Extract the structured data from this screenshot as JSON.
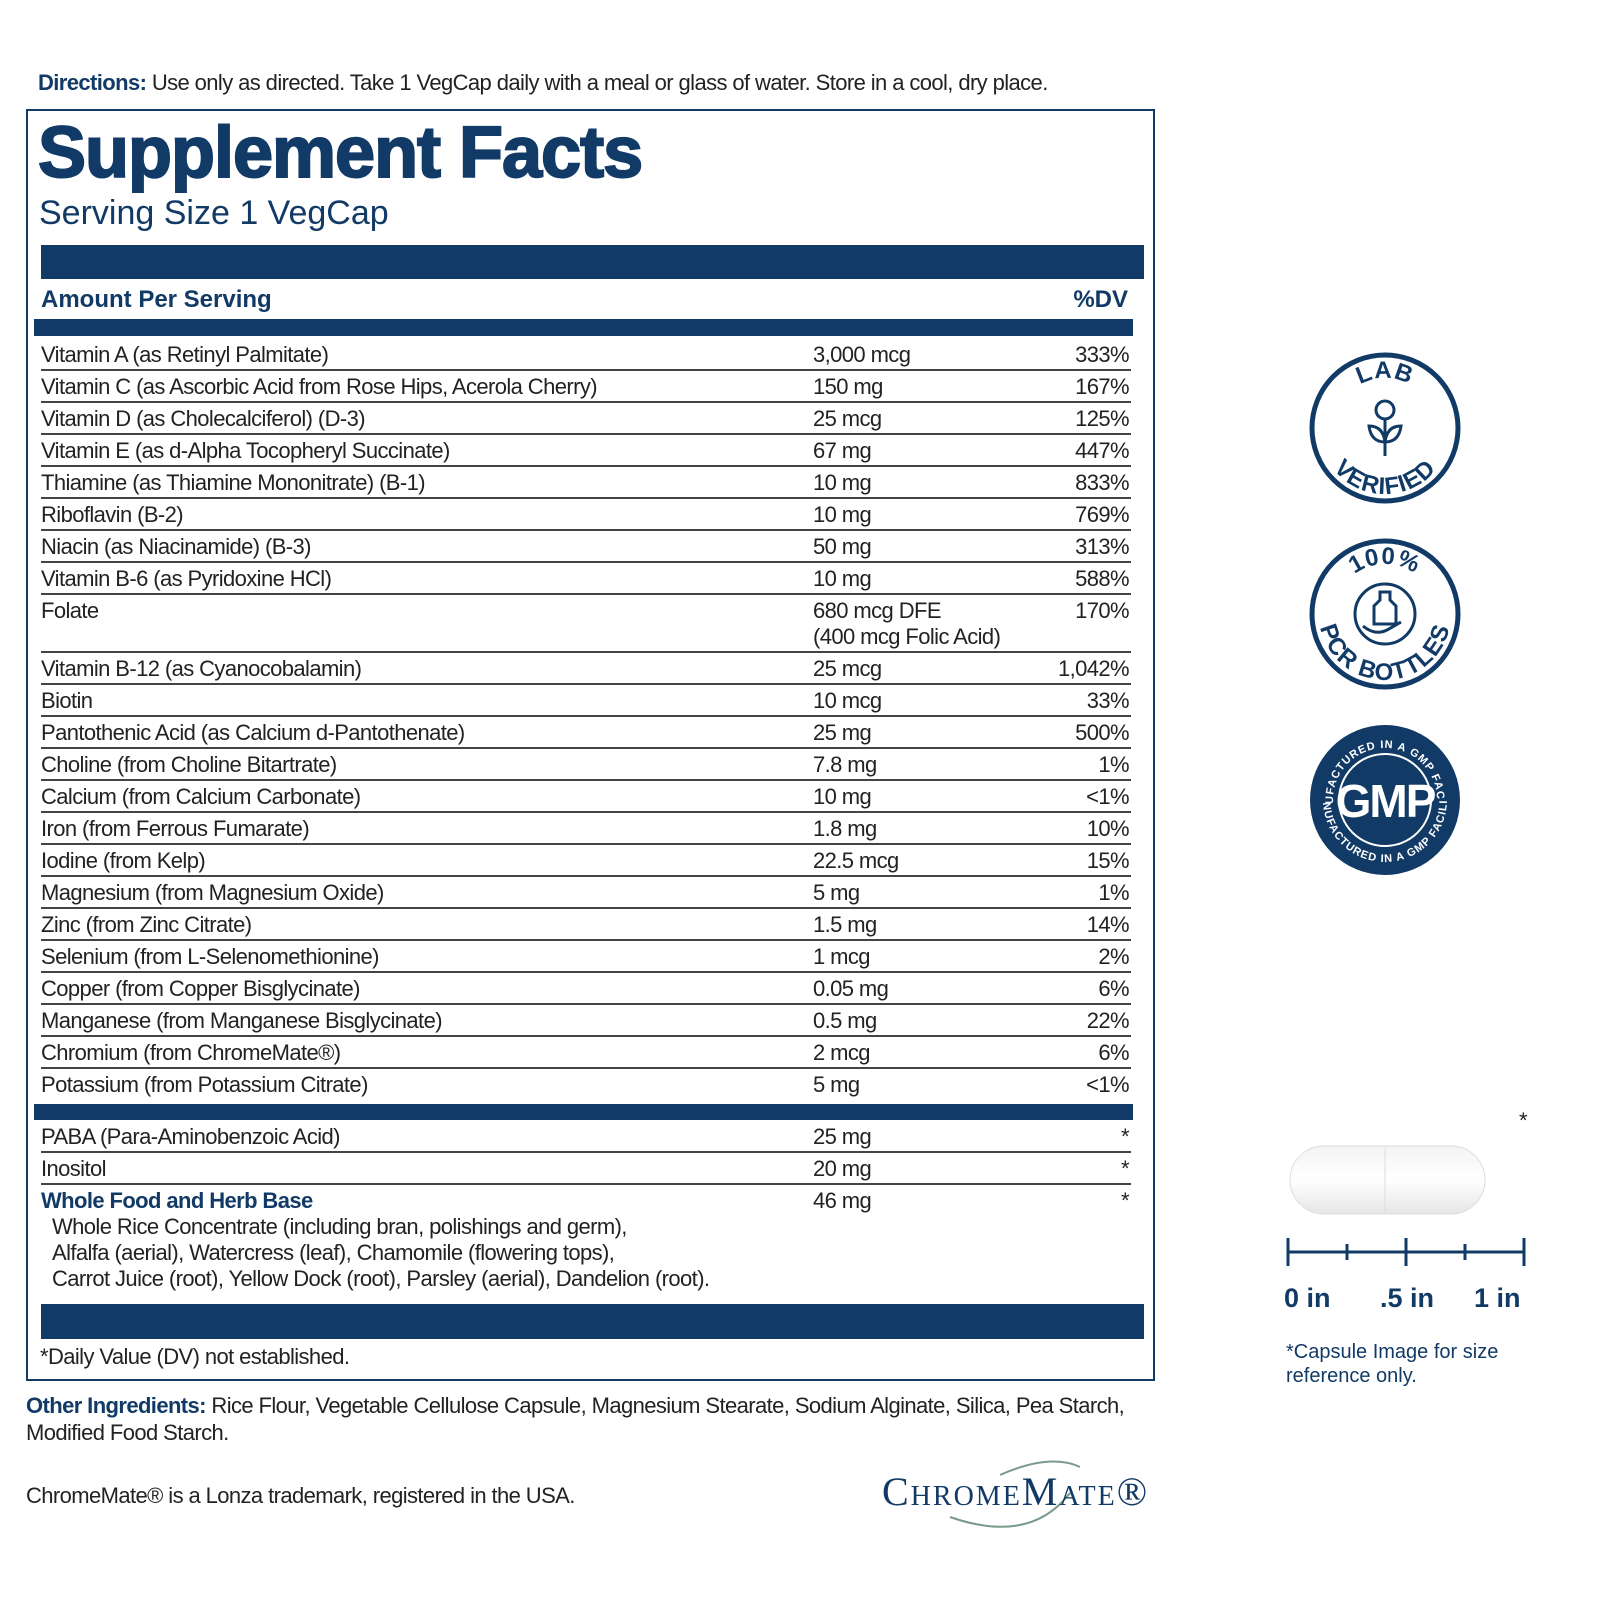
{
  "directions": {
    "label": "Directions:",
    "text": "Use only as directed. Take 1 VegCap daily with a meal or glass of water. Store in a cool, dry place."
  },
  "supplement_facts": {
    "title": "Supplement Facts",
    "serving_size": "Serving Size 1 VegCap",
    "header": {
      "amount": "Amount Per Serving",
      "dv": "%DV"
    },
    "rows": [
      {
        "name": "Vitamin A (as Retinyl Palmitate)",
        "amount": "3,000 mcg",
        "dv": "333%"
      },
      {
        "name": "Vitamin C (as Ascorbic Acid from Rose Hips, Acerola Cherry)",
        "amount": "150 mg",
        "dv": "167%"
      },
      {
        "name": "Vitamin D (as Cholecalciferol) (D-3)",
        "amount": "25 mcg",
        "dv": "125%"
      },
      {
        "name": "Vitamin E (as d-Alpha Tocopheryl Succinate)",
        "amount": "67 mg",
        "dv": "447%"
      },
      {
        "name": "Thiamine (as Thiamine Mononitrate) (B-1)",
        "amount": "10 mg",
        "dv": "833%"
      },
      {
        "name": "Riboflavin (B-2)",
        "amount": "10 mg",
        "dv": "769%"
      },
      {
        "name": "Niacin (as Niacinamide) (B-3)",
        "amount": "50 mg",
        "dv": "313%"
      },
      {
        "name": "Vitamin B-6 (as Pyridoxine HCl)",
        "amount": "10 mg",
        "dv": "588%"
      },
      {
        "name": "Folate",
        "amount": "680 mcg DFE",
        "amount_note": "(400 mcg Folic Acid)",
        "dv": "170%"
      },
      {
        "name": "Vitamin B-12 (as Cyanocobalamin)",
        "amount": "25 mcg",
        "dv": "1,042%"
      },
      {
        "name": "Biotin",
        "amount": "10 mcg",
        "dv": "33%"
      },
      {
        "name": "Pantothenic Acid (as Calcium d-Pantothenate)",
        "amount": "25 mg",
        "dv": "500%"
      },
      {
        "name": "Choline (from Choline Bitartrate)",
        "amount": "7.8 mg",
        "dv": "1%"
      },
      {
        "name": "Calcium (from Calcium Carbonate)",
        "amount": "10 mg",
        "dv": "<1%"
      },
      {
        "name": "Iron (from Ferrous Fumarate)",
        "amount": "1.8 mg",
        "dv": "10%"
      },
      {
        "name": "Iodine (from Kelp)",
        "amount": "22.5 mcg",
        "dv": "15%"
      },
      {
        "name": "Magnesium (from Magnesium Oxide)",
        "amount": "5 mg",
        "dv": "1%"
      },
      {
        "name": "Zinc (from Zinc Citrate)",
        "amount": "1.5 mg",
        "dv": "14%"
      },
      {
        "name": "Selenium (from L-Selenomethionine)",
        "amount": "1 mcg",
        "dv": "2%"
      },
      {
        "name": "Copper (from Copper Bisglycinate)",
        "amount": "0.05 mg",
        "dv": "6%"
      },
      {
        "name": "Manganese (from Manganese Bisglycinate)",
        "amount": "0.5 mg",
        "dv": "22%"
      },
      {
        "name": "Chromium (from ChromeMate®)",
        "amount": "2 mcg",
        "dv": "6%"
      },
      {
        "name": "Potassium (from Potassium Citrate)",
        "amount": "5 mg",
        "dv": "<1%"
      }
    ],
    "other_rows": [
      {
        "name": "PABA (Para-Aminobenzoic Acid)",
        "amount": "25 mg",
        "dv": "*"
      },
      {
        "name": "Inositol",
        "amount": "20 mg",
        "dv": "*"
      },
      {
        "name": "Whole Food and Herb Base",
        "amount": "46 mg",
        "dv": "*",
        "ingredients": [
          "Whole Rice Concentrate (including bran, polishings and germ),",
          "Alfalfa (aerial), Watercress (leaf), Chamomile (flowering tops),",
          "Carrot Juice (root), Yellow Dock (root), Parsley (aerial), Dandelion (root)."
        ]
      }
    ],
    "footnote": "*Daily Value (DV) not established."
  },
  "other_ingredients": {
    "label": "Other Ingredients:",
    "text": "Rice Flour, Vegetable Cellulose Capsule, Magnesium Stearate, Sodium Alginate, Silica, Pea Starch, Modified Food Starch."
  },
  "trademark_note": "ChromeMate® is a Lonza trademark, registered in the USA.",
  "logo": "ChromeMate®",
  "badges": [
    {
      "top": "LAB",
      "bottom": "VERIFIED"
    },
    {
      "top": "100%",
      "bottom": "PCR BOTTLES"
    },
    {
      "center": "GMP",
      "ring": "MANUFACTURED IN A GMP FACILITY"
    }
  ],
  "capsule": {
    "mark": "*",
    "scale": [
      "0 in",
      ".5 in",
      "1 in"
    ],
    "note": "*Capsule Image for size reference only."
  }
}
